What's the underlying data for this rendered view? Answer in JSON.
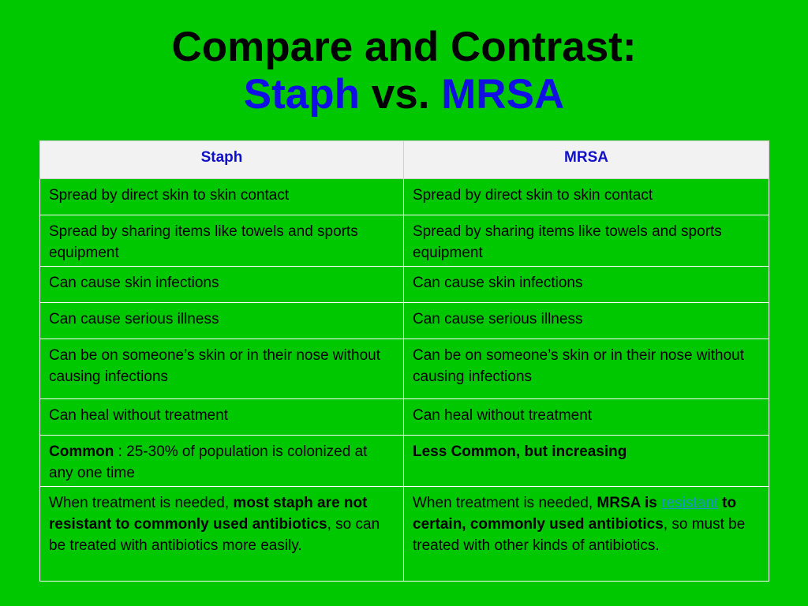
{
  "title": {
    "line1": "Compare and Contrast:",
    "staph": "Staph",
    "vs": " vs. ",
    "mrsa": "MRSA"
  },
  "colors": {
    "background": "#00c800",
    "accent_blue": "#1010e6",
    "header_bg": "#f2f2f2",
    "link": "#1e90c0"
  },
  "table": {
    "headers": [
      "Staph",
      "MRSA"
    ],
    "rows": [
      [
        "Spread by direct skin to skin contact",
        "Spread by direct skin to skin contact"
      ],
      [
        "Spread by sharing items like towels and sports equipment",
        "Spread by sharing items like towels and sports equipment"
      ],
      [
        "Can cause skin infections",
        "Can cause skin infections"
      ],
      [
        "Can cause serious illness",
        "Can cause serious illness"
      ],
      [
        "Can be on someone’s skin or in their nose without causing infections",
        "Can be on someone’s skin or in their nose without causing infections"
      ],
      [
        "Can heal without treatment",
        "Can heal without treatment"
      ]
    ],
    "row7": {
      "left_bold": "Common",
      "left_rest": " : 25-30% of population is colonized at any one time",
      "right_bold": "Less Common, but increasing"
    },
    "row8": {
      "left_1": "When treatment is needed, ",
      "left_2": "most staph are not resistant to commonly used antibiotics",
      "left_3": ", so can be treated with antibiotics more easily.",
      "right_1": "When treatment is needed, ",
      "right_2": "MRSA is ",
      "right_link": "resistant",
      "right_3": " to certain, commonly used antibiotics",
      "right_4": ", so must be treated with other kinds of antibiotics."
    }
  }
}
